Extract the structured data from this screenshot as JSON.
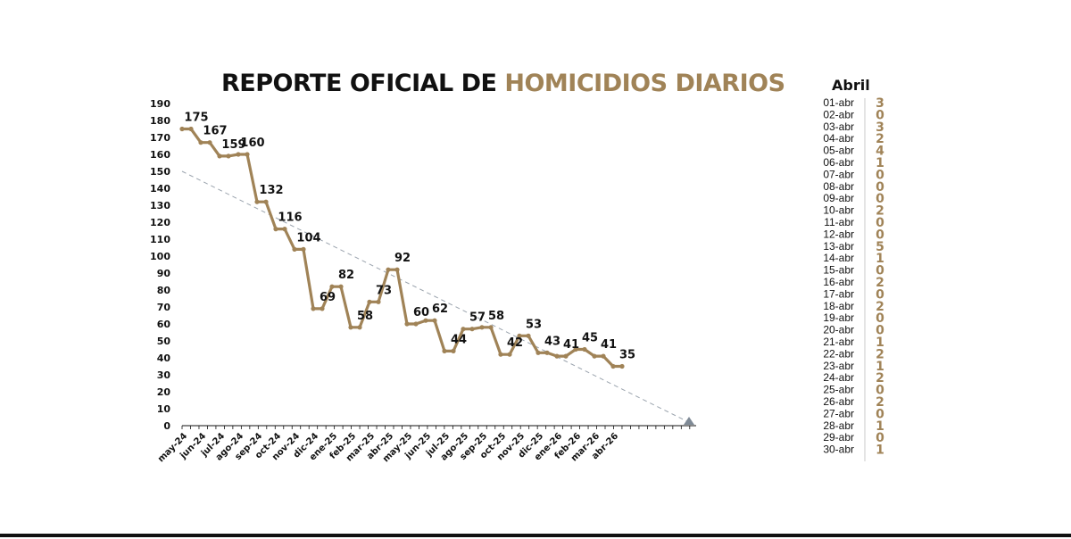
{
  "title": {
    "part1": "REPORTE OFICIAL DE ",
    "part2": "HOMICIDIOS DIARIOS"
  },
  "colors": {
    "series": "#a08357",
    "trend": "#9aa3ad",
    "axis": "#111111",
    "accent": "#a08357"
  },
  "chart_data": {
    "type": "line",
    "title": "REPORTE OFICIAL DE HOMICIDIOS DIARIOS",
    "xlabel": "",
    "ylabel": "",
    "ylim": [
      0,
      190
    ],
    "yticks": [
      0,
      10,
      20,
      30,
      40,
      50,
      60,
      70,
      80,
      90,
      100,
      110,
      120,
      130,
      140,
      150,
      160,
      170,
      180,
      190
    ],
    "x_tick_labels": [
      "may-24",
      "jun-24",
      "jul-24",
      "ago-24",
      "sep-24",
      "oct-24",
      "nov-24",
      "dic-24",
      "ene-25",
      "feb-25",
      "mar-25",
      "abr-25",
      "may-25",
      "jun-25",
      "jul-25",
      "ago-25",
      "sep-25",
      "oct-25",
      "nov-25",
      "dic-25",
      "ene-26",
      "feb-26",
      "mar-26",
      "abr-26"
    ],
    "categories": [
      "may-24",
      "jun-24",
      "jul-24",
      "ago-24",
      "sep-24",
      "oct-24",
      "nov-24",
      "dic-24",
      "ene-25",
      "feb-25",
      "mar-25",
      "abr-25",
      "may-25",
      "jun-25",
      "jul-25",
      "ago-25",
      "sep-25",
      "oct-25",
      "nov-25",
      "dic-25",
      "ene-26",
      "feb-26",
      "mar-26",
      "abr-26"
    ],
    "series": [
      {
        "values": [
          175,
          167,
          159,
          160,
          132,
          116,
          104,
          69,
          82,
          58,
          73,
          92,
          60,
          62,
          44,
          57,
          58,
          42,
          53,
          43,
          41,
          45,
          41,
          35
        ]
      }
    ],
    "data_labels": [
      "175",
      "167",
      "159",
      "160",
      "132",
      "116",
      "104",
      "69",
      "82",
      "58",
      "73",
      "92",
      "60",
      "62",
      "44",
      "57",
      "58",
      "42",
      "53",
      "43",
      "41",
      "45",
      "41",
      "35"
    ],
    "trendline": {
      "from": 150,
      "to": 2
    },
    "grid": false,
    "legend": "none"
  },
  "april_panel": {
    "title": "Abril",
    "rows": [
      {
        "date": "01-abr",
        "value": "3"
      },
      {
        "date": "02-abr",
        "value": "0"
      },
      {
        "date": "03-abr",
        "value": "3"
      },
      {
        "date": "04-abr",
        "value": "2"
      },
      {
        "date": "05-abr",
        "value": "4"
      },
      {
        "date": "06-abr",
        "value": "1"
      },
      {
        "date": "07-abr",
        "value": "0"
      },
      {
        "date": "08-abr",
        "value": "0"
      },
      {
        "date": "09-abr",
        "value": "0"
      },
      {
        "date": "10-abr",
        "value": "2"
      },
      {
        "date": "11-abr",
        "value": "0"
      },
      {
        "date": "12-abr",
        "value": "0"
      },
      {
        "date": "13-abr",
        "value": "5"
      },
      {
        "date": "14-abr",
        "value": "1"
      },
      {
        "date": "15-abr",
        "value": "0"
      },
      {
        "date": "16-abr",
        "value": "2"
      },
      {
        "date": "17-abr",
        "value": "0"
      },
      {
        "date": "18-abr",
        "value": "2"
      },
      {
        "date": "19-abr",
        "value": "0"
      },
      {
        "date": "20-abr",
        "value": "0"
      },
      {
        "date": "21-abr",
        "value": "1"
      },
      {
        "date": "22-abr",
        "value": "2"
      },
      {
        "date": "23-abr",
        "value": "1"
      },
      {
        "date": "24-abr",
        "value": "2"
      },
      {
        "date": "25-abr",
        "value": "0"
      },
      {
        "date": "26-abr",
        "value": "2"
      },
      {
        "date": "27-abr",
        "value": "0"
      },
      {
        "date": "28-abr",
        "value": "1"
      },
      {
        "date": "29-abr",
        "value": "0"
      },
      {
        "date": "30-abr",
        "value": "1"
      }
    ]
  }
}
